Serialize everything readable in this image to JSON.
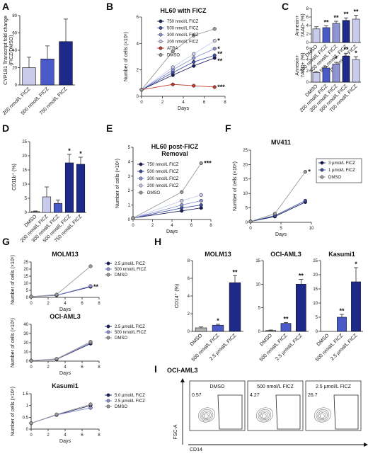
{
  "colors": {
    "c750": "#1b1f5e",
    "c500": "#3e4fa2",
    "c300": "#8e94d2",
    "c200": "#c8cbec",
    "atra": "#c0392b",
    "dmso": "#9a9a9a",
    "bar_dark": "#1e2a8a",
    "bar_mid": "#4a5ac8",
    "bar_light": "#c8cbec",
    "bar_grey": "#b5b5b5"
  },
  "chart_data": [
    {
      "panel": "A",
      "type": "bar",
      "ylabel": "CYP1B1 Transcript fold change (FICZ/DMSO)",
      "ylim": [
        0,
        80
      ],
      "yticks": [
        0,
        20,
        40,
        60,
        80
      ],
      "categories": [
        "200 nmol/L FICZ",
        "500 nmol/L FICZ",
        "750 nmol/L FICZ"
      ],
      "values": [
        20,
        30,
        50
      ],
      "errors": [
        12,
        15,
        26
      ],
      "significance": [
        "",
        "",
        ""
      ]
    },
    {
      "panel": "B",
      "type": "line",
      "title": "HL60 with FICZ",
      "xlabel": "Days",
      "ylabel": "Number of cells (×10⁶)",
      "xlim": [
        0,
        8
      ],
      "xticks": [
        0,
        2,
        4,
        6,
        8
      ],
      "ylim": [
        0,
        6
      ],
      "yticks": [
        0,
        2,
        4,
        6
      ],
      "series": [
        {
          "name": "750 nmol/L FICZ",
          "x": [
            0,
            3,
            5,
            7
          ],
          "values": [
            0.5,
            1.6,
            2.3,
            2.9
          ],
          "sig": "**"
        },
        {
          "name": "500 nmol/L FICZ",
          "x": [
            0,
            3,
            5,
            7
          ],
          "values": [
            0.5,
            1.8,
            2.6,
            3.1
          ],
          "sig": "**"
        },
        {
          "name": "300 nmol/L FICZ",
          "x": [
            0,
            3,
            5,
            7
          ],
          "values": [
            0.5,
            2.0,
            2.9,
            3.6
          ],
          "sig": "*"
        },
        {
          "name": "200 nmol/L FICZ",
          "x": [
            0,
            3,
            5,
            7
          ],
          "values": [
            0.5,
            2.2,
            3.2,
            4.2
          ],
          "sig": "*"
        },
        {
          "name": "ATRA",
          "x": [
            0,
            3,
            5,
            7
          ],
          "values": [
            0.5,
            0.9,
            0.8,
            0.7
          ],
          "sig": "***"
        },
        {
          "name": "DMSO",
          "x": [
            0,
            3,
            5,
            7
          ],
          "values": [
            0.5,
            3.4,
            4.6,
            5.1
          ],
          "sig": ""
        }
      ]
    },
    {
      "panel": "C1",
      "type": "bar",
      "ylabel": "Annexin+ 7AAD- (%)",
      "ylim": [
        0,
        8
      ],
      "yticks": [
        0,
        2,
        4,
        6,
        8
      ],
      "categories": [
        "DMSO",
        "200 nmol/L FICZ",
        "300 nmol/L FICZ",
        "500 nmol/L FICZ",
        "750 nmol/L FICZ"
      ],
      "values": [
        3.2,
        3.5,
        4.5,
        5.2,
        5.5
      ],
      "errors": [
        0.5,
        0.4,
        0.5,
        0.6,
        0.9
      ],
      "significance": [
        "",
        "**",
        "**",
        "**",
        "**"
      ]
    },
    {
      "panel": "C2",
      "type": "bar",
      "ylabel": "Annexin+ 7AAD+ (%)",
      "ylim": [
        0,
        6
      ],
      "yticks": [
        0,
        2,
        4,
        6
      ],
      "categories": [
        "DMSO",
        "200 nmol/L FICZ",
        "300 nmol/L FICZ",
        "500 nmol/L FICZ",
        "750 nmol/L FICZ"
      ],
      "values": [
        1.7,
        2.5,
        3.2,
        4.6,
        4.0
      ],
      "errors": [
        0.2,
        0.3,
        0.3,
        0.5,
        0.5
      ],
      "significance": [
        "",
        "",
        "*",
        "**",
        "*"
      ]
    },
    {
      "panel": "D",
      "type": "bar",
      "ylabel": "CD11b⁺ (%)",
      "ylim": [
        0,
        25
      ],
      "yticks": [
        0,
        5,
        10,
        15,
        20,
        25
      ],
      "categories": [
        "DMSO",
        "200 nmol/L FICZ",
        "300 nmol/L FICZ",
        "500 nmol/L FICZ",
        "750 nmol/L FICZ"
      ],
      "values": [
        0.3,
        5.5,
        3.2,
        17.5,
        17.0
      ],
      "errors": [
        0.2,
        3.5,
        1.2,
        3.0,
        2.5
      ],
      "significance": [
        "",
        "",
        "",
        "*",
        "*"
      ]
    },
    {
      "panel": "E",
      "type": "line",
      "title_lines": [
        "HL60 post-FICZ",
        "Removal"
      ],
      "xlabel": "Days",
      "ylabel": "Number of cells (×10⁶)",
      "xlim": [
        0,
        8
      ],
      "xticks": [
        0,
        2,
        4,
        6,
        8
      ],
      "ylim": [
        0,
        5
      ],
      "yticks": [
        0,
        1,
        2,
        3,
        4,
        5
      ],
      "series": [
        {
          "name": "750 nmol/L FICZ",
          "x": [
            0,
            5,
            7
          ],
          "values": [
            0.1,
            0.6,
            0.8
          ],
          "sig": ""
        },
        {
          "name": "500 nmol/L FICZ",
          "x": [
            0,
            5,
            7
          ],
          "values": [
            0.1,
            0.8,
            1.0
          ],
          "sig": ""
        },
        {
          "name": "300 nmol/L FICZ",
          "x": [
            0,
            5,
            7
          ],
          "values": [
            0.1,
            1.0,
            1.3
          ],
          "sig": ""
        },
        {
          "name": "200 nmol/L FICZ",
          "x": [
            0,
            5,
            7
          ],
          "values": [
            0.1,
            1.3,
            1.7
          ],
          "sig": ""
        },
        {
          "name": "DMSO",
          "x": [
            0,
            5,
            7
          ],
          "values": [
            0.1,
            1.9,
            3.9
          ],
          "sig": "***"
        }
      ]
    },
    {
      "panel": "F",
      "type": "line",
      "title": "MV411",
      "xlabel": "Days",
      "ylabel": "Number of cells (×10⁶)",
      "xlim": [
        0,
        10
      ],
      "xticks": [
        0,
        5,
        10
      ],
      "ylim": [
        0,
        25
      ],
      "yticks": [
        0,
        5,
        10,
        15,
        20,
        25
      ],
      "series": [
        {
          "name": "3 µmol/L FICZ",
          "x": [
            0,
            4,
            9
          ],
          "values": [
            0.3,
            2.0,
            7.0
          ],
          "sig": ""
        },
        {
          "name": "1 µmol/L FICZ",
          "x": [
            0,
            4,
            9
          ],
          "values": [
            0.3,
            2.3,
            7.5
          ],
          "sig": ""
        },
        {
          "name": "DMSO",
          "x": [
            0,
            4,
            9
          ],
          "values": [
            0.3,
            3.0,
            17.5
          ],
          "sig": "*"
        }
      ]
    },
    {
      "panel": "G1",
      "type": "line",
      "title": "MOLM13",
      "xlabel": "Days",
      "ylabel": "Number of cells (×10⁶)",
      "xlim": [
        0,
        8
      ],
      "xticks": [
        0,
        2,
        4,
        6,
        8
      ],
      "ylim": [
        0,
        25
      ],
      "yticks": [
        0,
        5,
        10,
        15,
        20,
        25
      ],
      "series": [
        {
          "name": "2.5 µmol/L FICZ",
          "x": [
            0,
            3,
            7
          ],
          "values": [
            0.5,
            1.5,
            7.5
          ],
          "sig": "**"
        },
        {
          "name": "500 nmol/L FICZ",
          "x": [
            0,
            3,
            7
          ],
          "values": [
            0.5,
            1.6,
            8.0
          ],
          "sig": ""
        },
        {
          "name": "DMSO",
          "x": [
            0,
            3,
            7
          ],
          "values": [
            0.5,
            2.0,
            22.0
          ],
          "sig": ""
        }
      ]
    },
    {
      "panel": "G2",
      "type": "line",
      "title": "OCI-AML3",
      "xlabel": "Days",
      "ylabel": "Number of cells (×10⁶)",
      "xlim": [
        0,
        8
      ],
      "xticks": [
        0,
        2,
        4,
        6,
        8
      ],
      "ylim": [
        0,
        40
      ],
      "yticks": [
        0,
        10,
        20,
        30,
        40
      ],
      "series": [
        {
          "name": "2.5 µmol/L FICZ",
          "x": [
            0,
            3,
            7
          ],
          "values": [
            0.5,
            2.0,
            19.0
          ],
          "sig": ""
        },
        {
          "name": "500 nmol/L FICZ",
          "x": [
            0,
            3,
            7
          ],
          "values": [
            0.5,
            2.2,
            20.0
          ],
          "sig": ""
        },
        {
          "name": "DMSO",
          "x": [
            0,
            3,
            7
          ],
          "values": [
            0.5,
            2.5,
            21.0
          ],
          "sig": ""
        }
      ]
    },
    {
      "panel": "G3",
      "type": "line",
      "title": "Kasumi1",
      "xlabel": "Days",
      "ylabel": "Number of cells (×10⁶)",
      "xlim": [
        0,
        8
      ],
      "xticks": [
        0,
        2,
        4,
        6,
        8
      ],
      "ylim": [
        0,
        1.5
      ],
      "yticks": [
        0,
        0.5,
        1.0,
        1.5
      ],
      "series": [
        {
          "name": "5.0 µmol/L FICZ",
          "x": [
            0,
            3,
            7
          ],
          "values": [
            0.25,
            0.6,
            1.0
          ],
          "sig": ""
        },
        {
          "name": "2.5 µmol/L FICZ",
          "x": [
            0,
            3,
            7
          ],
          "values": [
            0.25,
            0.6,
            0.9
          ],
          "sig": ""
        },
        {
          "name": "DMSO",
          "x": [
            0,
            3,
            7
          ],
          "values": [
            0.25,
            0.62,
            1.05
          ],
          "sig": ""
        }
      ]
    },
    {
      "panel": "H1",
      "type": "bar",
      "title": "MOLM13",
      "ylabel": "CD14⁺ (%)",
      "ylim": [
        0,
        8
      ],
      "yticks": [
        0,
        2,
        4,
        6,
        8
      ],
      "categories": [
        "DMSO",
        "500 nmol/L FICZ",
        "2.5 µmol/L FICZ"
      ],
      "values": [
        0.4,
        0.7,
        5.5
      ],
      "errors": [
        0.1,
        0.1,
        0.8
      ],
      "significance": [
        "",
        "*",
        "**"
      ]
    },
    {
      "panel": "H2",
      "type": "bar",
      "title": "OCI-AML3",
      "ylabel": "",
      "ylim": [
        0,
        15
      ],
      "yticks": [
        0,
        5,
        10,
        15
      ],
      "categories": [
        "DMSO",
        "500 nmol/L FICZ",
        "2.5 µmol/L FICZ"
      ],
      "values": [
        0.2,
        1.7,
        10.0
      ],
      "errors": [
        0.1,
        0.2,
        1.0
      ],
      "significance": [
        "",
        "**",
        "**"
      ]
    },
    {
      "panel": "H3",
      "type": "bar",
      "title": "Kasumi1",
      "ylabel": "",
      "ylim": [
        0,
        25
      ],
      "yticks": [
        0,
        5,
        10,
        15,
        20,
        25
      ],
      "categories": [
        "DMSO",
        "500 nmol/L FICZ",
        "2.5 µmol/L FICZ"
      ],
      "values": [
        0.0,
        5.0,
        17.5
      ],
      "errors": [
        0.0,
        1.0,
        5.0
      ],
      "significance": [
        "",
        "**",
        "*"
      ]
    }
  ],
  "flow_I": {
    "panel": "I",
    "title": "OCI-AML3",
    "xlabel": "CD14",
    "ylabel": "FSC-A",
    "gates": [
      {
        "label": "DMSO",
        "percent": "0.57"
      },
      {
        "label": "500 nmol/L FICZ",
        "percent": "4.27"
      },
      {
        "label": "2.5 µmol/L FICZ",
        "percent": "26.7"
      }
    ]
  }
}
